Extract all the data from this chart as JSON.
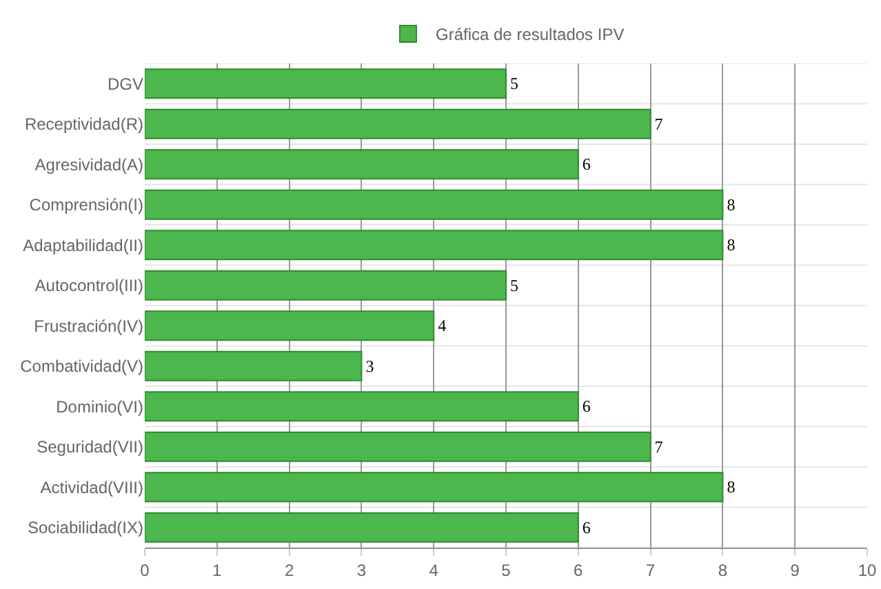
{
  "chart_data": {
    "type": "bar",
    "orientation": "horizontal",
    "categories": [
      "DGV",
      "Receptividad(R)",
      "Agresividad(A)",
      "Comprensión(I)",
      "Adaptabilidad(II)",
      "Autocontrol(III)",
      "Frustración(IV)",
      "Combatividad(V)",
      "Dominio(VI)",
      "Seguridad(VII)",
      "Actividad(VIII)",
      "Sociabilidad(IX)"
    ],
    "series": [
      {
        "name": "Gráfica de resultados IPV",
        "color": "#4cb74c",
        "values": [
          5,
          7,
          6,
          8,
          8,
          5,
          4,
          3,
          6,
          7,
          8,
          6
        ]
      }
    ],
    "xlim": [
      0,
      10
    ],
    "xticks": [
      0,
      1,
      2,
      3,
      4,
      5,
      6,
      7,
      8,
      9,
      10
    ],
    "grid": true,
    "legend": "top",
    "data_labels": true
  }
}
